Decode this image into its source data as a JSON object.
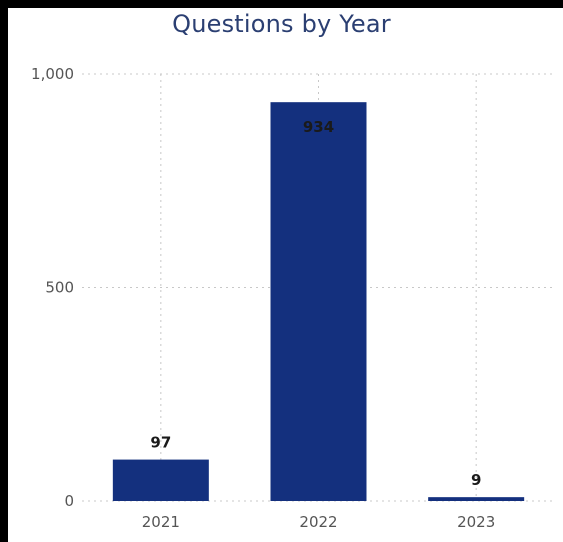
{
  "chart_data": {
    "type": "bar",
    "title": "Questions by Year",
    "categories": [
      "2021",
      "2022",
      "2023"
    ],
    "values": [
      97,
      934,
      9
    ],
    "data_labels": [
      "97",
      "934",
      "9"
    ],
    "ylim": [
      0,
      1000
    ],
    "yticks": [
      0,
      500,
      1000
    ],
    "ytick_labels": [
      "0",
      "500",
      "1,000"
    ],
    "xlabel": "",
    "ylabel": "",
    "grid": true,
    "bar_color": "#14307e",
    "grid_color": "#c8c8c8",
    "title_color": "#2b3f72"
  }
}
